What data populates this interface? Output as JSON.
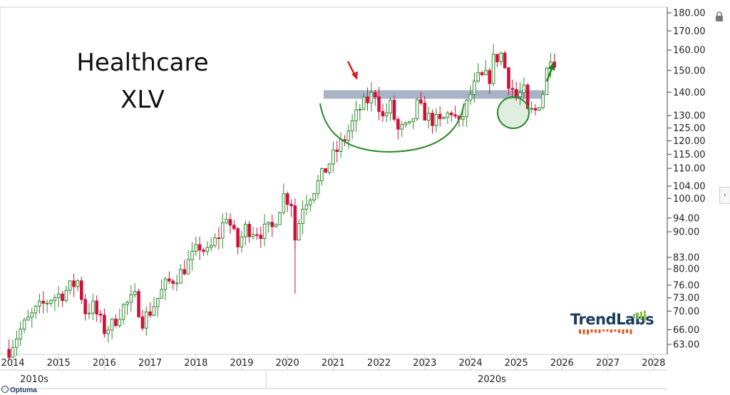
{
  "annotations": {
    "title_line1": "Healthcare",
    "title_line2": "XLV"
  },
  "brand": {
    "logo_text": "TrendLabs",
    "footer": "Optuma"
  },
  "chart_data": {
    "type": "candlestick",
    "scale": "log",
    "ylim": [
      60,
      182
    ],
    "y_ticks": [
      "63.00",
      "66.00",
      "70.00",
      "73.00",
      "76.00",
      "80.00",
      "83.00",
      "90.00",
      "94.00",
      "100.00",
      "104.00",
      "110.00",
      "115.00",
      "120.00",
      "125.00",
      "130.00",
      "140.00",
      "150.00",
      "160.00",
      "170.00",
      "180.00"
    ],
    "x_ticks": [
      "2014",
      "2015",
      "2016",
      "2017",
      "2018",
      "2019",
      "2020",
      "2021",
      "2022",
      "2023",
      "2024",
      "2025",
      "2026",
      "2027",
      "2028"
    ],
    "decades": [
      "2010s",
      "2020s"
    ],
    "resistance_level": 139,
    "colors": {
      "up": "#2e8b2e",
      "down": "#d0103a",
      "band": "#9aa6bc",
      "arc": "#2a8a2a",
      "arrow_down": "#e01b1b",
      "arrow_up": "#138a13"
    },
    "path": [
      [
        "2013-12",
        62
      ],
      [
        "2014-03",
        66
      ],
      [
        "2014-07",
        70
      ],
      [
        "2014-11",
        73
      ],
      [
        "2015-02",
        74
      ],
      [
        "2015-06",
        77
      ],
      [
        "2015-08",
        70
      ],
      [
        "2015-10",
        71
      ],
      [
        "2016-01",
        66
      ],
      [
        "2016-03",
        67
      ],
      [
        "2016-06",
        71
      ],
      [
        "2016-09",
        73
      ],
      [
        "2016-11",
        68
      ],
      [
        "2017-01",
        70
      ],
      [
        "2017-05",
        76
      ],
      [
        "2017-09",
        79
      ],
      [
        "2017-12",
        83
      ],
      [
        "2018-02",
        86
      ],
      [
        "2018-04",
        84
      ],
      [
        "2018-07",
        89
      ],
      [
        "2018-09",
        95
      ],
      [
        "2018-12",
        86
      ],
      [
        "2019-02",
        91
      ],
      [
        "2019-06",
        90
      ],
      [
        "2019-09",
        91
      ],
      [
        "2019-12",
        101
      ],
      [
        "2020-02",
        99
      ],
      [
        "2020-03",
        88
      ],
      [
        "2020-05",
        98
      ],
      [
        "2020-09",
        105
      ],
      [
        "2020-12",
        112
      ],
      [
        "2021-04",
        121
      ],
      [
        "2021-08",
        133
      ],
      [
        "2021-12",
        140
      ],
      [
        "2022-02",
        129
      ],
      [
        "2022-04",
        134
      ],
      [
        "2022-06",
        124
      ],
      [
        "2022-09",
        125
      ],
      [
        "2022-11",
        134
      ],
      [
        "2023-02",
        129
      ],
      [
        "2023-05",
        127
      ],
      [
        "2023-08",
        132
      ],
      [
        "2023-10",
        126
      ],
      [
        "2024-01",
        139
      ],
      [
        "2024-03",
        146
      ],
      [
        "2024-06",
        147
      ],
      [
        "2024-07",
        155
      ],
      [
        "2024-09",
        158
      ],
      [
        "2024-11",
        145
      ],
      [
        "2025-01",
        138
      ],
      [
        "2025-03",
        140
      ],
      [
        "2025-04",
        131
      ],
      [
        "2025-06",
        132
      ],
      [
        "2025-08",
        140
      ],
      [
        "2025-09",
        150
      ],
      [
        "2025-10",
        158
      ],
      [
        "2025-11",
        155
      ]
    ]
  }
}
